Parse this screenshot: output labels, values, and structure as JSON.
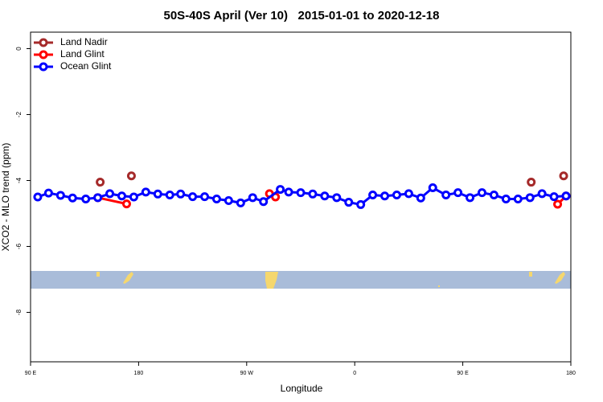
{
  "chart_data": {
    "type": "line",
    "title": "50S-40S April (Ver 10)   2015-01-01 to 2020-12-18",
    "xlabel": "Longitude",
    "ylabel": "XCO2 - MLO trend (ppm)",
    "xlim": [
      90,
      540
    ],
    "ylim": [
      -9.5,
      0.5
    ],
    "xticks": [
      {
        "value": 90,
        "label": "90 E"
      },
      180,
      {
        "value": 270,
        "label": "90 W"
      },
      {
        "value": 360,
        "label": "0"
      },
      {
        "value": 450,
        "label": "90 E"
      },
      {
        "value": 540,
        "label": "180"
      }
    ],
    "yticks": [
      0,
      -2,
      -4,
      -6,
      -8
    ],
    "legend": "top-left",
    "series": [
      {
        "name": "Land Nadir",
        "color": "#a52a2a",
        "line": false,
        "x": [
          148,
          174,
          507,
          534
        ],
        "values": [
          -4.05,
          -3.86,
          -4.05,
          -3.86
        ]
      },
      {
        "name": "Land Glint",
        "color": "#ff0000",
        "line": true,
        "x": [
          146,
          170,
          230,
          289,
          294,
          420,
          529,
          536
        ],
        "values": [
          -4.52,
          -4.71,
          null,
          -4.4,
          -4.5,
          null,
          -4.72,
          -4.47
        ]
      },
      {
        "name": "Ocean Glint",
        "color": "#0000ff",
        "line": true,
        "x": [
          96,
          105,
          115,
          125,
          136,
          146,
          156,
          166,
          176,
          186,
          196,
          206,
          215,
          225,
          235,
          245,
          255,
          265,
          275,
          284,
          298,
          305,
          315,
          325,
          335,
          345,
          355,
          365,
          375,
          385,
          395,
          405,
          415,
          425,
          436,
          446,
          456,
          466,
          476,
          486,
          496,
          506,
          516,
          526,
          536
        ],
        "values": [
          -4.5,
          -4.38,
          -4.45,
          -4.53,
          -4.56,
          -4.52,
          -4.4,
          -4.47,
          -4.5,
          -4.35,
          -4.41,
          -4.44,
          -4.41,
          -4.49,
          -4.49,
          -4.56,
          -4.61,
          -4.68,
          -4.52,
          -4.64,
          -4.27,
          -4.35,
          -4.37,
          -4.41,
          -4.47,
          -4.52,
          -4.66,
          -4.73,
          -4.44,
          -4.47,
          -4.44,
          -4.4,
          -4.53,
          -4.22,
          -4.44,
          -4.37,
          -4.52,
          -4.37,
          -4.44,
          -4.56,
          -4.56,
          -4.52,
          -4.4,
          -4.49,
          -4.47
        ]
      }
    ]
  }
}
